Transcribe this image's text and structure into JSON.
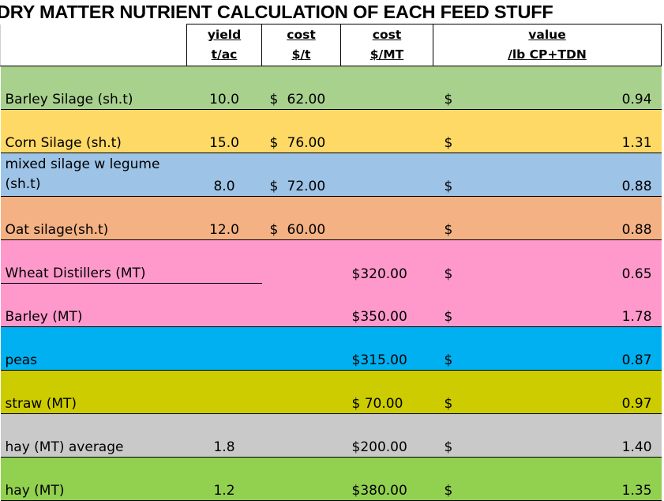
{
  "title": "DRY MATTER NUTRIENT CALCULATION OF EACH FEED STUFF",
  "headers": {
    "yield": [
      "yield",
      "t/ac"
    ],
    "cost_t": [
      "cost",
      "$/t"
    ],
    "cost_mt": [
      "cost",
      "$/MT"
    ],
    "value": [
      "value",
      "/lb CP+TDN"
    ]
  },
  "rows": [
    {
      "name": "Barley Silage  (sh.t)",
      "yield": "10.0",
      "cost_sign": "$",
      "cost_t": "62.00",
      "cost_mt": "",
      "value_sign": "$",
      "value": "0.94",
      "color": "#a9d18e"
    },
    {
      "name": "Corn Silage (sh.t)",
      "yield": "15.0",
      "cost_sign": "$",
      "cost_t": "76.00",
      "cost_mt": "",
      "value_sign": "$",
      "value": "1.31",
      "color": "#ffd966"
    },
    {
      "name": "mixed silage w legume (sh.t)",
      "yield": "8.0",
      "cost_sign": "$",
      "cost_t": "72.00",
      "cost_mt": "",
      "value_sign": "$",
      "value": "0.88",
      "color": "#9dc3e6"
    },
    {
      "name": "Oat silage(sh.t)",
      "yield": "12.0",
      "cost_sign": "$",
      "cost_t": "60.00",
      "cost_mt": "",
      "value_sign": "$",
      "value": "0.88",
      "color": "#f4b183"
    },
    {
      "name": "Wheat Distillers (MT)",
      "yield": "",
      "cost_sign": "",
      "cost_t": "",
      "cost_mt": "$320.00",
      "value_sign": "$",
      "value": "0.65",
      "color": "#ff99cc"
    },
    {
      "name": "Barley (MT)",
      "yield": "",
      "cost_sign": "",
      "cost_t": "",
      "cost_mt": "$350.00",
      "value_sign": "$",
      "value": "1.78",
      "color": "#ff99cc"
    },
    {
      "name": "peas",
      "yield": "",
      "cost_sign": "",
      "cost_t": "",
      "cost_mt": "$315.00",
      "value_sign": "$",
      "value": "0.87",
      "color": "#00b0f0"
    },
    {
      "name": "straw (MT)",
      "yield": "",
      "cost_sign": "",
      "cost_t": "",
      "cost_mt": "$  70.00",
      "value_sign": "$",
      "value": "0.97",
      "color": "#cccc00"
    },
    {
      "name": "hay (MT) average",
      "yield": "1.8",
      "cost_sign": "",
      "cost_t": "",
      "cost_mt": "$200.00",
      "value_sign": "$",
      "value": "1.40",
      "color": "#c9c9c9"
    },
    {
      "name": "hay (MT)",
      "yield": "1.2",
      "cost_sign": "",
      "cost_t": "",
      "cost_mt": "$380.00",
      "value_sign": "$",
      "value": "1.35",
      "color": "#92d050"
    }
  ]
}
